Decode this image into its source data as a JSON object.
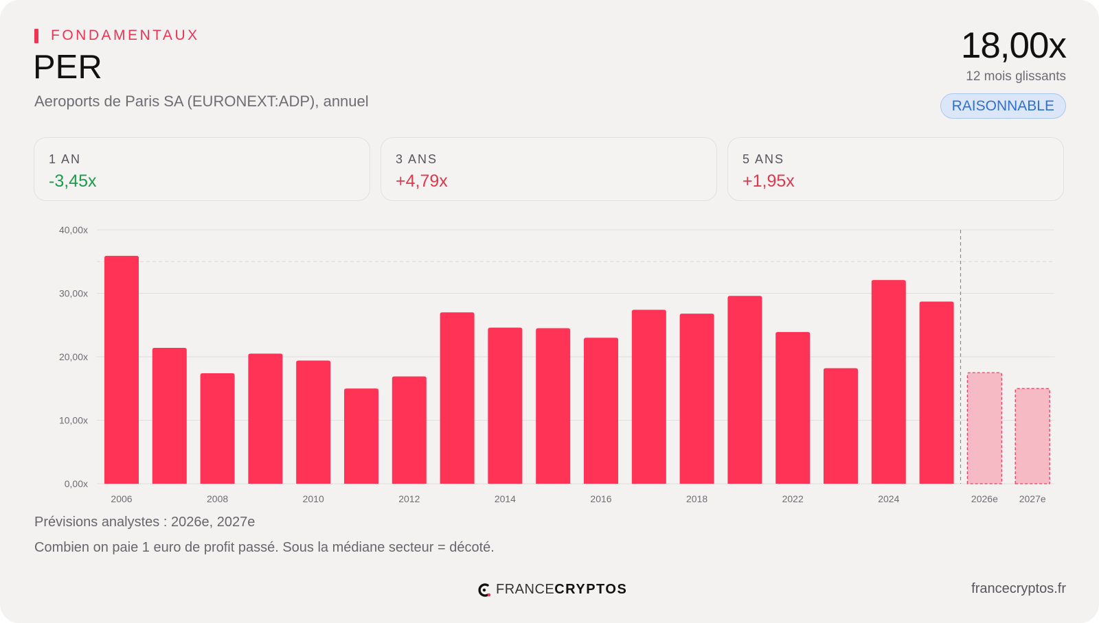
{
  "header": {
    "eyebrow": "FONDAMENTAUX",
    "title": "PER",
    "subtitle": "Aeroports de Paris SA (EURONEXT:ADP), annuel"
  },
  "kpi": {
    "value": "18,00x",
    "caption": "12 mois glissants",
    "badge": "RAISONNABLE"
  },
  "stats": [
    {
      "label": "1 AN",
      "value": "-3,45x",
      "color": "#1a9e4b"
    },
    {
      "label": "3 ANS",
      "value": "+4,79x",
      "color": "#e2384d"
    },
    {
      "label": "5 ANS",
      "value": "+1,95x",
      "color": "#e2384d"
    }
  ],
  "chart_data": {
    "type": "bar",
    "categories": [
      "2006",
      "2007",
      "2008",
      "2009",
      "2010",
      "2011",
      "2012",
      "2013",
      "2014",
      "2015",
      "2016",
      "2017",
      "2018",
      "2019",
      "2022",
      "2023",
      "2024",
      "2025",
      "2026e",
      "2027e"
    ],
    "x_tick_labels": [
      "2006",
      "",
      "2008",
      "",
      "2010",
      "",
      "2012",
      "",
      "2014",
      "",
      "2016",
      "",
      "2018",
      "",
      "2022",
      "",
      "2024",
      "",
      "2026e",
      "2027e"
    ],
    "values": [
      35.9,
      21.4,
      17.4,
      20.5,
      19.4,
      15.0,
      16.9,
      27.0,
      24.6,
      24.5,
      23.0,
      27.4,
      26.8,
      29.6,
      23.9,
      18.2,
      32.1,
      28.7,
      17.5,
      15.0
    ],
    "estimate_from_index": 18,
    "ylim": [
      0,
      40
    ],
    "yticks": [
      "0,00x",
      "10,00x",
      "20,00x",
      "30,00x",
      "40,00x"
    ],
    "reference_line": 35,
    "bar_color": "#ff3355",
    "estimate_color": "#f6bac5",
    "estimate_border": "#e8405e"
  },
  "footer": {
    "note1": "Prévisions analystes : 2026e, 2027e",
    "note2": "Combien on paie 1 euro de profit passé. Sous la médiane secteur = décoté.",
    "brand_light": "FRANCE",
    "brand_bold": "CRYPTOS",
    "site": "francecryptos.fr"
  }
}
